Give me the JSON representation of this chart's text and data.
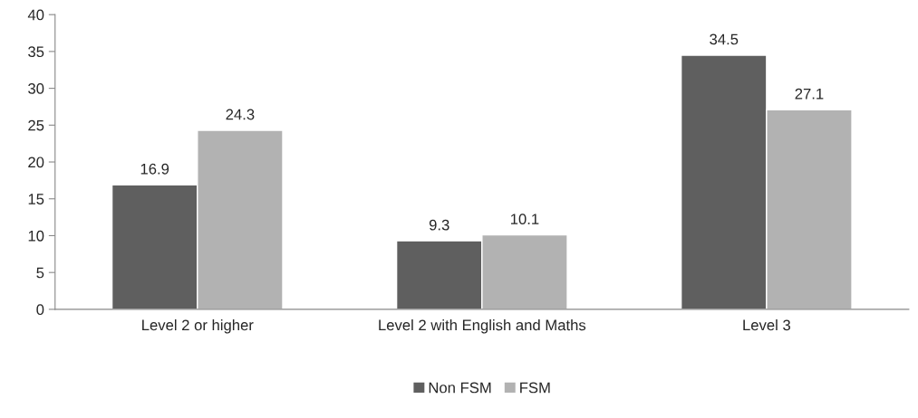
{
  "chart_data": {
    "type": "bar",
    "categories": [
      "Level 2 or higher",
      "Level 2 with English and Maths",
      "Level 3"
    ],
    "series": [
      {
        "name": "Non FSM",
        "color": "#5f5f5f",
        "values": [
          16.9,
          9.3,
          34.5
        ]
      },
      {
        "name": "FSM",
        "color": "#b2b2b2",
        "values": [
          24.3,
          10.1,
          27.1
        ]
      }
    ],
    "ylim": [
      0,
      40
    ],
    "yticks": [
      0,
      5,
      10,
      15,
      20,
      25,
      30,
      35,
      40
    ],
    "data_labels": true,
    "grid": false,
    "legend": "bottom"
  }
}
